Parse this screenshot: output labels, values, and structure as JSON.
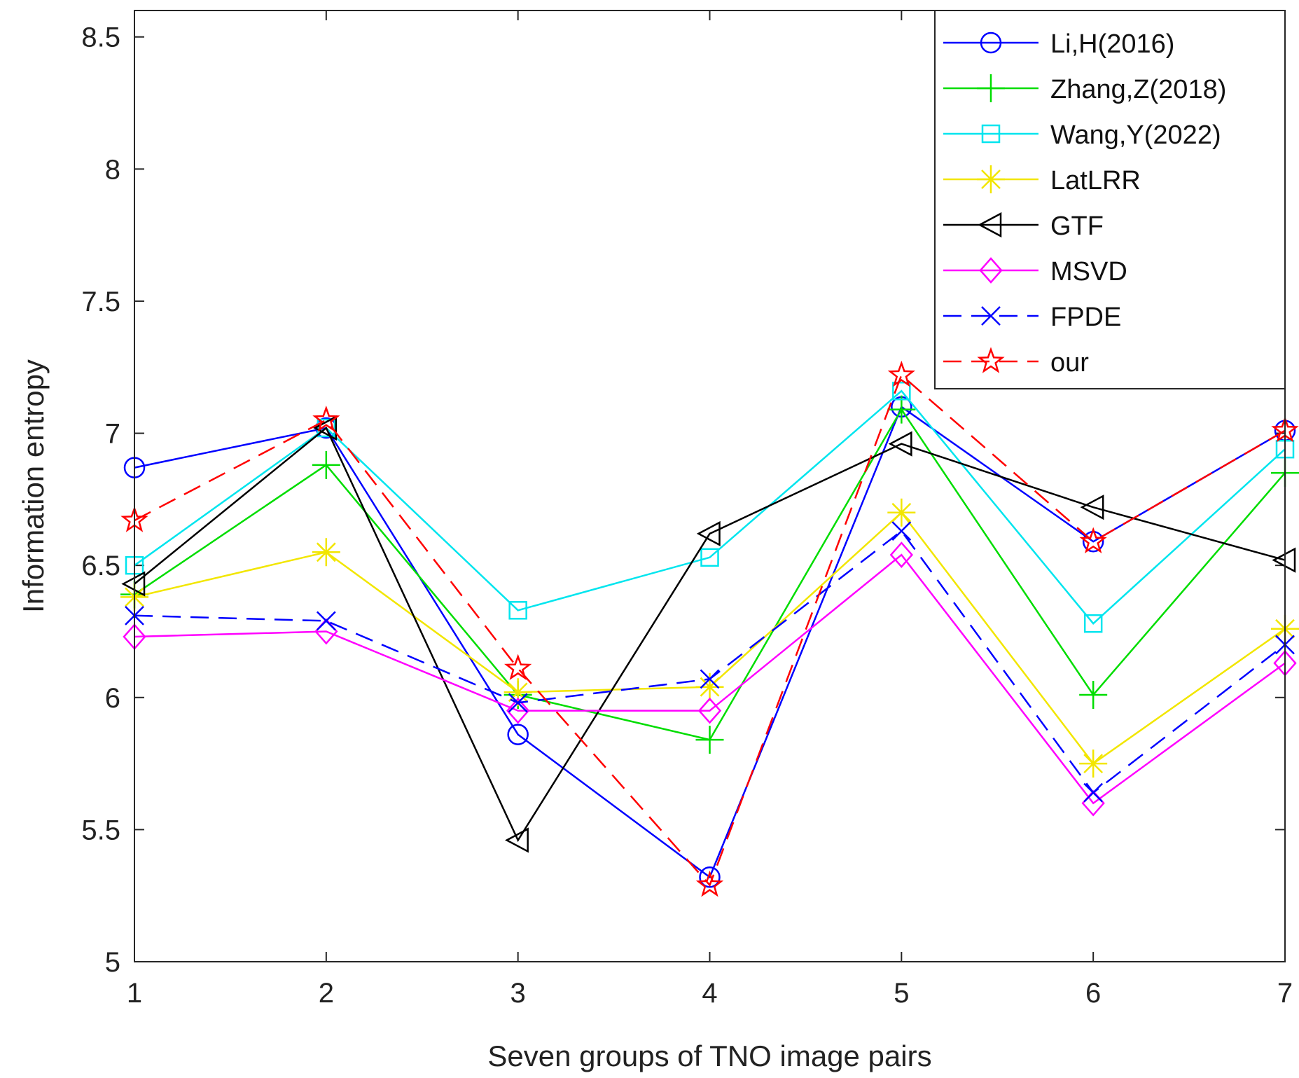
{
  "chart_data": {
    "type": "line",
    "title": "",
    "xlabel": "Seven groups of TNO image pairs",
    "ylabel": "Information entropy",
    "x": [
      1,
      2,
      3,
      4,
      5,
      6,
      7
    ],
    "xticks": [
      "1",
      "2",
      "3",
      "4",
      "5",
      "6",
      "7"
    ],
    "yticks": [
      "5",
      "5.5",
      "6",
      "6.5",
      "7",
      "7.5",
      "8",
      "8.5"
    ],
    "xlim": [
      1,
      7
    ],
    "ylim": [
      5,
      8.6
    ],
    "grid": false,
    "legend_position": "top-right",
    "series": [
      {
        "name": "Li,H(2016)",
        "color": "#0000ff",
        "dash": "solid",
        "marker": "circle",
        "values": [
          6.87,
          7.02,
          5.86,
          5.32,
          7.1,
          6.59,
          7.01
        ]
      },
      {
        "name": "Zhang,Z(2018)",
        "color": "#00dd00",
        "dash": "solid",
        "marker": "plus",
        "values": [
          6.39,
          6.88,
          6.01,
          5.84,
          7.09,
          6.01,
          6.85
        ]
      },
      {
        "name": "Wang,Y(2022)",
        "color": "#00e5ee",
        "dash": "solid",
        "marker": "square",
        "values": [
          6.5,
          7.02,
          6.33,
          6.53,
          7.16,
          6.28,
          6.94
        ]
      },
      {
        "name": "LatLRR",
        "color": "#f2e600",
        "dash": "solid",
        "marker": "asterisk",
        "values": [
          6.38,
          6.55,
          6.02,
          6.04,
          6.7,
          5.75,
          6.26
        ]
      },
      {
        "name": "GTF",
        "color": "#000000",
        "dash": "solid",
        "marker": "triangle-left",
        "values": [
          6.43,
          7.02,
          5.46,
          6.62,
          6.96,
          6.72,
          6.52
        ]
      },
      {
        "name": "MSVD",
        "color": "#ff00ff",
        "dash": "solid",
        "marker": "diamond",
        "values": [
          6.23,
          6.25,
          5.95,
          5.95,
          6.54,
          5.6,
          6.13
        ]
      },
      {
        "name": "FPDE",
        "color": "#0000ff",
        "dash": "dashed",
        "marker": "x",
        "values": [
          6.31,
          6.29,
          5.98,
          6.07,
          6.63,
          5.64,
          6.2
        ]
      },
      {
        "name": "our",
        "color": "#ff0000",
        "dash": "dashed",
        "marker": "pentagram",
        "values": [
          6.67,
          7.05,
          6.11,
          5.29,
          7.22,
          6.59,
          7.01
        ]
      }
    ]
  }
}
